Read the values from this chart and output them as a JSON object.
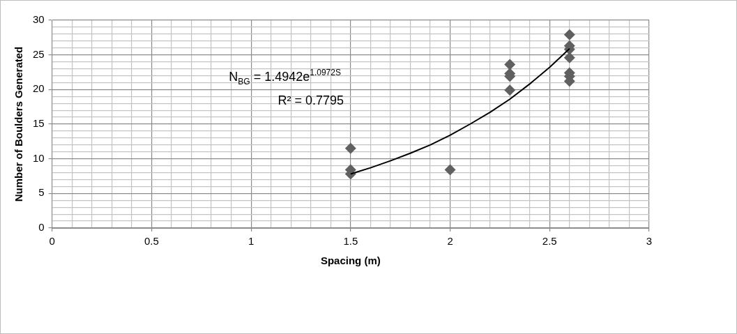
{
  "chart_data": {
    "type": "scatter",
    "xlabel": "Spacing (m)",
    "ylabel": "Number of Boulders Generated",
    "xlim": [
      0,
      3
    ],
    "ylim": [
      0,
      30
    ],
    "xticks": [
      0,
      {
        "value": 0.1,
        "label": null
      },
      {
        "value": 0.2,
        "label": null
      },
      {
        "value": 0.3,
        "label": null
      },
      {
        "value": 0.4,
        "label": null
      },
      0.5,
      {
        "value": 0.6,
        "label": null
      },
      {
        "value": 0.7,
        "label": null
      },
      {
        "value": 0.8,
        "label": null
      },
      {
        "value": 0.9,
        "label": null
      },
      1,
      {
        "value": 1.1,
        "label": null
      },
      {
        "value": 1.2,
        "label": null
      },
      {
        "value": 1.3,
        "label": null
      },
      {
        "value": 1.4,
        "label": null
      },
      1.5,
      {
        "value": 1.6,
        "label": null
      },
      {
        "value": 1.7,
        "label": null
      },
      {
        "value": 1.8,
        "label": null
      },
      {
        "value": 1.9,
        "label": null
      },
      2,
      {
        "value": 2.1,
        "label": null
      },
      {
        "value": 2.2,
        "label": null
      },
      {
        "value": 2.3,
        "label": null
      },
      {
        "value": 2.4,
        "label": null
      },
      2.5,
      {
        "value": 2.6,
        "label": null
      },
      {
        "value": 2.7,
        "label": null
      },
      {
        "value": 2.8,
        "label": null
      },
      {
        "value": 2.9,
        "label": null
      },
      3
    ],
    "yticks": [
      0,
      {
        "value": 1,
        "label": null
      },
      {
        "value": 2,
        "label": null
      },
      {
        "value": 3,
        "label": null
      },
      {
        "value": 4,
        "label": null
      },
      5,
      {
        "value": 6,
        "label": null
      },
      {
        "value": 7,
        "label": null
      },
      {
        "value": 8,
        "label": null
      },
      {
        "value": 9,
        "label": null
      },
      10,
      {
        "value": 11,
        "label": null
      },
      {
        "value": 12,
        "label": null
      },
      {
        "value": 13,
        "label": null
      },
      {
        "value": 14,
        "label": null
      },
      15,
      {
        "value": 16,
        "label": null
      },
      {
        "value": 17,
        "label": null
      },
      {
        "value": 18,
        "label": null
      },
      {
        "value": 19,
        "label": null
      },
      20,
      {
        "value": 21,
        "label": null
      },
      {
        "value": 22,
        "label": null
      },
      {
        "value": 23,
        "label": null
      },
      {
        "value": 24,
        "label": null
      },
      25,
      {
        "value": 26,
        "label": null
      },
      {
        "value": 27,
        "label": null
      },
      {
        "value": 28,
        "label": null
      },
      {
        "value": 29,
        "label": null
      },
      30
    ],
    "grid": true,
    "legend": false,
    "series": [
      {
        "type": "scatter",
        "color": "#606060",
        "marker": "diamond",
        "x": [
          1.5,
          1.5,
          1.5,
          2,
          2.3,
          2.3,
          2.3,
          2.3,
          2.6,
          2.6,
          2.6,
          2.6,
          2.6,
          2.6,
          2.6
        ],
        "values": [
          11.5,
          8.4,
          7.8,
          8.4,
          23.6,
          22.3,
          21.9,
          19.9,
          27.9,
          26.3,
          25.8,
          24.6,
          22.4,
          21.9,
          21.2
        ]
      },
      {
        "type": "line",
        "color": "#000000",
        "marker": "none",
        "x": [
          1.5,
          1.6,
          1.7,
          1.8,
          1.9,
          2.0,
          2.1,
          2.2,
          2.3,
          2.4,
          2.5,
          2.6
        ],
        "values": [
          7.8,
          8.7,
          9.7,
          10.8,
          12,
          13.4,
          15,
          16.7,
          18.6,
          20.8,
          23.2,
          25.9
        ]
      }
    ],
    "annotations": [
      "N$_{BG}$ = 1.4942e$^{1.0972S}$",
      "R² = 0.7795"
    ]
  }
}
